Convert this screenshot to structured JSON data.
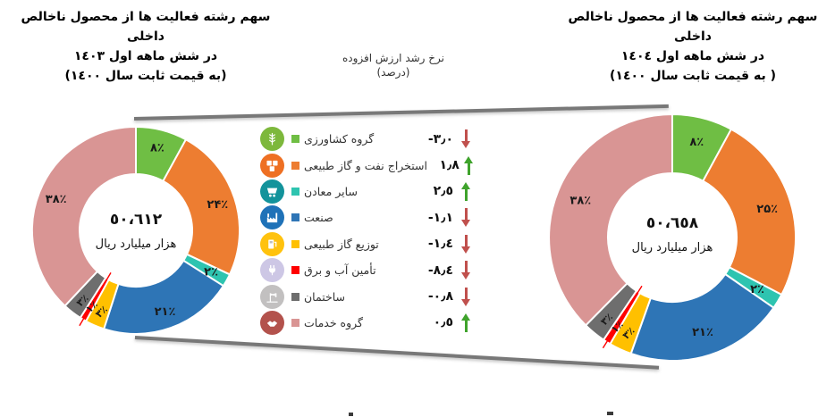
{
  "titles": {
    "left": [
      "سهم رشته فعالیت ها از محصول ناخالص داخلی",
      "در شش ماهه اول ١٤٠٣",
      "(به قیمت ثابت سال ١٤٠٠)"
    ],
    "right": [
      "سهم رشته فعالیت ها از محصول ناخالص داخلی",
      "در شش ماهه اول ١٤٠٤",
      "( به قیمت ثابت سال ١٤٠٠)"
    ]
  },
  "legend_header": {
    "line1": "نرخ رشد ارزش افزوده",
    "line2": "(درصد)"
  },
  "arrow_colors": {
    "up": "#3FA32C",
    "down": "#C0504D"
  },
  "legend": [
    {
      "label": "گروه کشاورزی",
      "icon": "wheat-icon",
      "icon_color": "#7DB83C",
      "color": "#6FBE44",
      "growth": "-٣٫٠",
      "growth_value": -3.0,
      "direction": "down"
    },
    {
      "label": "استخراج نفت و گاز طبیعی",
      "icon": "oil-barrels-icon",
      "icon_color": "#EE7023",
      "color": "#ED7D31",
      "growth": "١٫٨",
      "growth_value": 1.8,
      "direction": "up"
    },
    {
      "label": "سایر معادن",
      "icon": "mining-cart-icon",
      "icon_color": "#13939B",
      "color": "#2EC4B0",
      "growth": "٢٫٥",
      "growth_value": 2.5,
      "direction": "up"
    },
    {
      "label": "صنعت",
      "icon": "factory-icon",
      "icon_color": "#1F72B8",
      "color": "#2E75B6",
      "growth": "-١٫١",
      "growth_value": -1.1,
      "direction": "down"
    },
    {
      "label": "توزیع گاز طبیعی",
      "icon": "gas-pump-icon",
      "icon_color": "#FFC20E",
      "color": "#FFC000",
      "growth": "-١٫٤",
      "growth_value": -1.4,
      "direction": "down"
    },
    {
      "label": "تأمین آب و برق",
      "icon": "power-plug-icon",
      "icon_color": "#CDC7E5",
      "color": "#FF0000",
      "growth": "-٨٫٤",
      "growth_value": -8.4,
      "direction": "down"
    },
    {
      "label": "ساختمان",
      "icon": "construction-crane-icon",
      "icon_color": "#C2C0C0",
      "color": "#6E6E6E",
      "growth": "-٠٫٨",
      "growth_value": -0.8,
      "direction": "down"
    },
    {
      "label": "گروه خدمات",
      "icon": "handshake-icon",
      "icon_color": "#B3524C",
      "color": "#D99594",
      "growth": "٠٫٥",
      "growth_value": 0.5,
      "direction": "up"
    }
  ],
  "chart_data": [
    {
      "type": "pie",
      "subtype": "donut",
      "position": "left",
      "title": "سهم رشته فعالیت ها از محصول ناخالص داخلی در شش ماهه اول ١٤٠٣ (به قیمت ثابت سال ١٤٠٠)",
      "center_value": "٥٠،٦١٢",
      "center_value_numeric": 50612,
      "center_unit": "هزار میلیارد ریال",
      "categories": [
        "گروه کشاورزی",
        "استخراج نفت و گاز طبیعی",
        "سایر معادن",
        "صنعت",
        "توزیع گاز طبیعی",
        "تأمین آب و برق",
        "ساختمان",
        "گروه خدمات"
      ],
      "values": [
        8,
        24,
        2,
        21,
        3,
        1,
        3,
        38
      ],
      "labels": [
        "۸٪",
        "۲۴٪",
        "۲٪",
        "۲۱٪",
        "۳٪",
        "۱٪",
        "۳٪",
        "۳۸٪"
      ],
      "colors": [
        "#6FBE44",
        "#ED7D31",
        "#2EC4B0",
        "#2E75B6",
        "#FFC000",
        "#FF0000",
        "#6E6E6E",
        "#D99594"
      ],
      "start_angle": "top",
      "direction": "clockwise",
      "legend_position": "center-between-charts"
    },
    {
      "type": "pie",
      "subtype": "donut",
      "position": "right",
      "title": "سهم رشته فعالیت ها از محصول ناخالص داخلی در شش ماهه اول ١٤٠٤ ( به قیمت ثابت سال ١٤٠٠)",
      "center_value": "٥٠،٦٥٨",
      "center_value_numeric": 50658,
      "center_unit": "هزار میلیارد ریال",
      "categories": [
        "گروه کشاورزی",
        "استخراج نفت و گاز طبیعی",
        "سایر معادن",
        "صنعت",
        "توزیع گاز طبیعی",
        "تأمین آب و برق",
        "ساختمان",
        "گروه خدمات"
      ],
      "values": [
        8,
        25,
        2,
        21,
        3,
        1,
        3,
        38
      ],
      "labels": [
        "۸٪",
        "۲۵٪",
        "۲٪",
        "۲۱٪",
        "۳٪",
        "۱٪",
        "۳٪",
        "۳۸٪"
      ],
      "colors": [
        "#6FBE44",
        "#ED7D31",
        "#2EC4B0",
        "#2E75B6",
        "#FFC000",
        "#FF0000",
        "#6E6E6E",
        "#D99594"
      ],
      "start_angle": "top",
      "direction": "clockwise",
      "legend_position": "center-between-charts"
    }
  ]
}
